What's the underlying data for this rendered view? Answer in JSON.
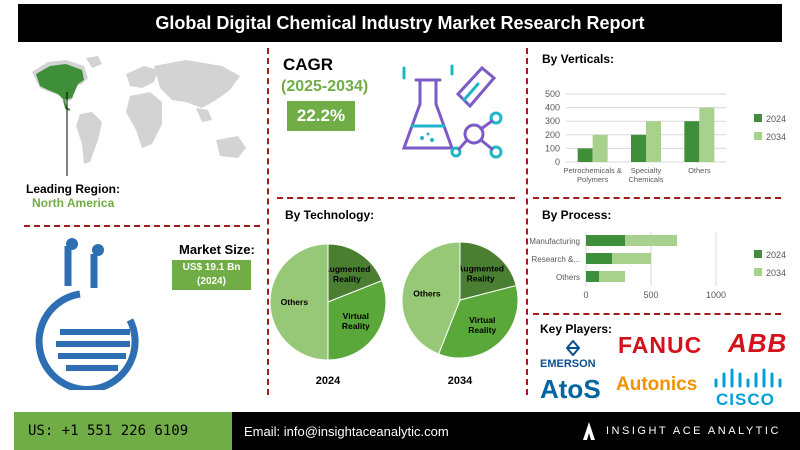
{
  "header": {
    "title": "Global Digital Chemical Industry Market Research Report"
  },
  "cagr": {
    "label": "CAGR",
    "years": "(2025-2034)",
    "value": "22.2%"
  },
  "region": {
    "label": "Leading Region:",
    "value": "North America"
  },
  "market_size": {
    "label": "Market Size:",
    "line1": "US$ 19.1 Bn",
    "line2": "(2024)"
  },
  "sections": {
    "verticals": "By Verticals:",
    "technology": "By Technology:",
    "process": "By Process:",
    "players": "Key Players:"
  },
  "key_players": [
    "EMERSON",
    "FANUC",
    "ABB",
    "AtoS",
    "Autonics",
    "CISCO"
  ],
  "footer": {
    "phone": "US: +1 551 226 6109",
    "email": "Email: info@insightaceanalytic.com",
    "brand": "INSIGHT ACE ANALYTIC"
  },
  "colors": {
    "accent": "#70ad47",
    "dark_green": "#3f8f3a",
    "light_green": "#a9d18e",
    "divider": "#a31c1c",
    "fanuc": "#d4121b",
    "atos": "#0066a1",
    "autonics": "#f39200",
    "cisco": "#049fd9"
  },
  "chart_data": [
    {
      "type": "bar",
      "title": "By Verticals:",
      "categories": [
        "Petrochemicals & Polymers",
        "Specialty Chemicals",
        "Others"
      ],
      "series": [
        {
          "name": "2024",
          "values": [
            100,
            200,
            300
          ]
        },
        {
          "name": "2034",
          "values": [
            200,
            300,
            400
          ]
        }
      ],
      "ylim": [
        0,
        500
      ],
      "yticks": [
        "0",
        "100",
        "200",
        "300",
        "400",
        "500"
      ],
      "legend": "right"
    },
    {
      "type": "pie",
      "title": "By Technology:",
      "charts": [
        {
          "name": "2024",
          "slices": [
            {
              "label": "Augmented Reality",
              "value": 0.19
            },
            {
              "label": "Virtual Reality",
              "value": 0.31
            },
            {
              "label": "Others",
              "value": 0.5
            }
          ]
        },
        {
          "name": "2034",
          "slices": [
            {
              "label": "Augmented Reality",
              "value": 0.21
            },
            {
              "label": "Virtual Reality",
              "value": 0.35
            },
            {
              "label": "Others",
              "value": 0.44
            }
          ]
        }
      ]
    },
    {
      "type": "bar",
      "orientation": "horizontal",
      "title": "By Process:",
      "categories": [
        "Manufacturing",
        "Research &...",
        "Others"
      ],
      "series": [
        {
          "name": "2024",
          "values": [
            300,
            200,
            100
          ]
        },
        {
          "name": "2034",
          "values": [
            400,
            300,
            200
          ]
        }
      ],
      "xlim": [
        0,
        1000
      ],
      "xticks": [
        "0",
        "500",
        "1000"
      ],
      "legend": "right"
    }
  ]
}
